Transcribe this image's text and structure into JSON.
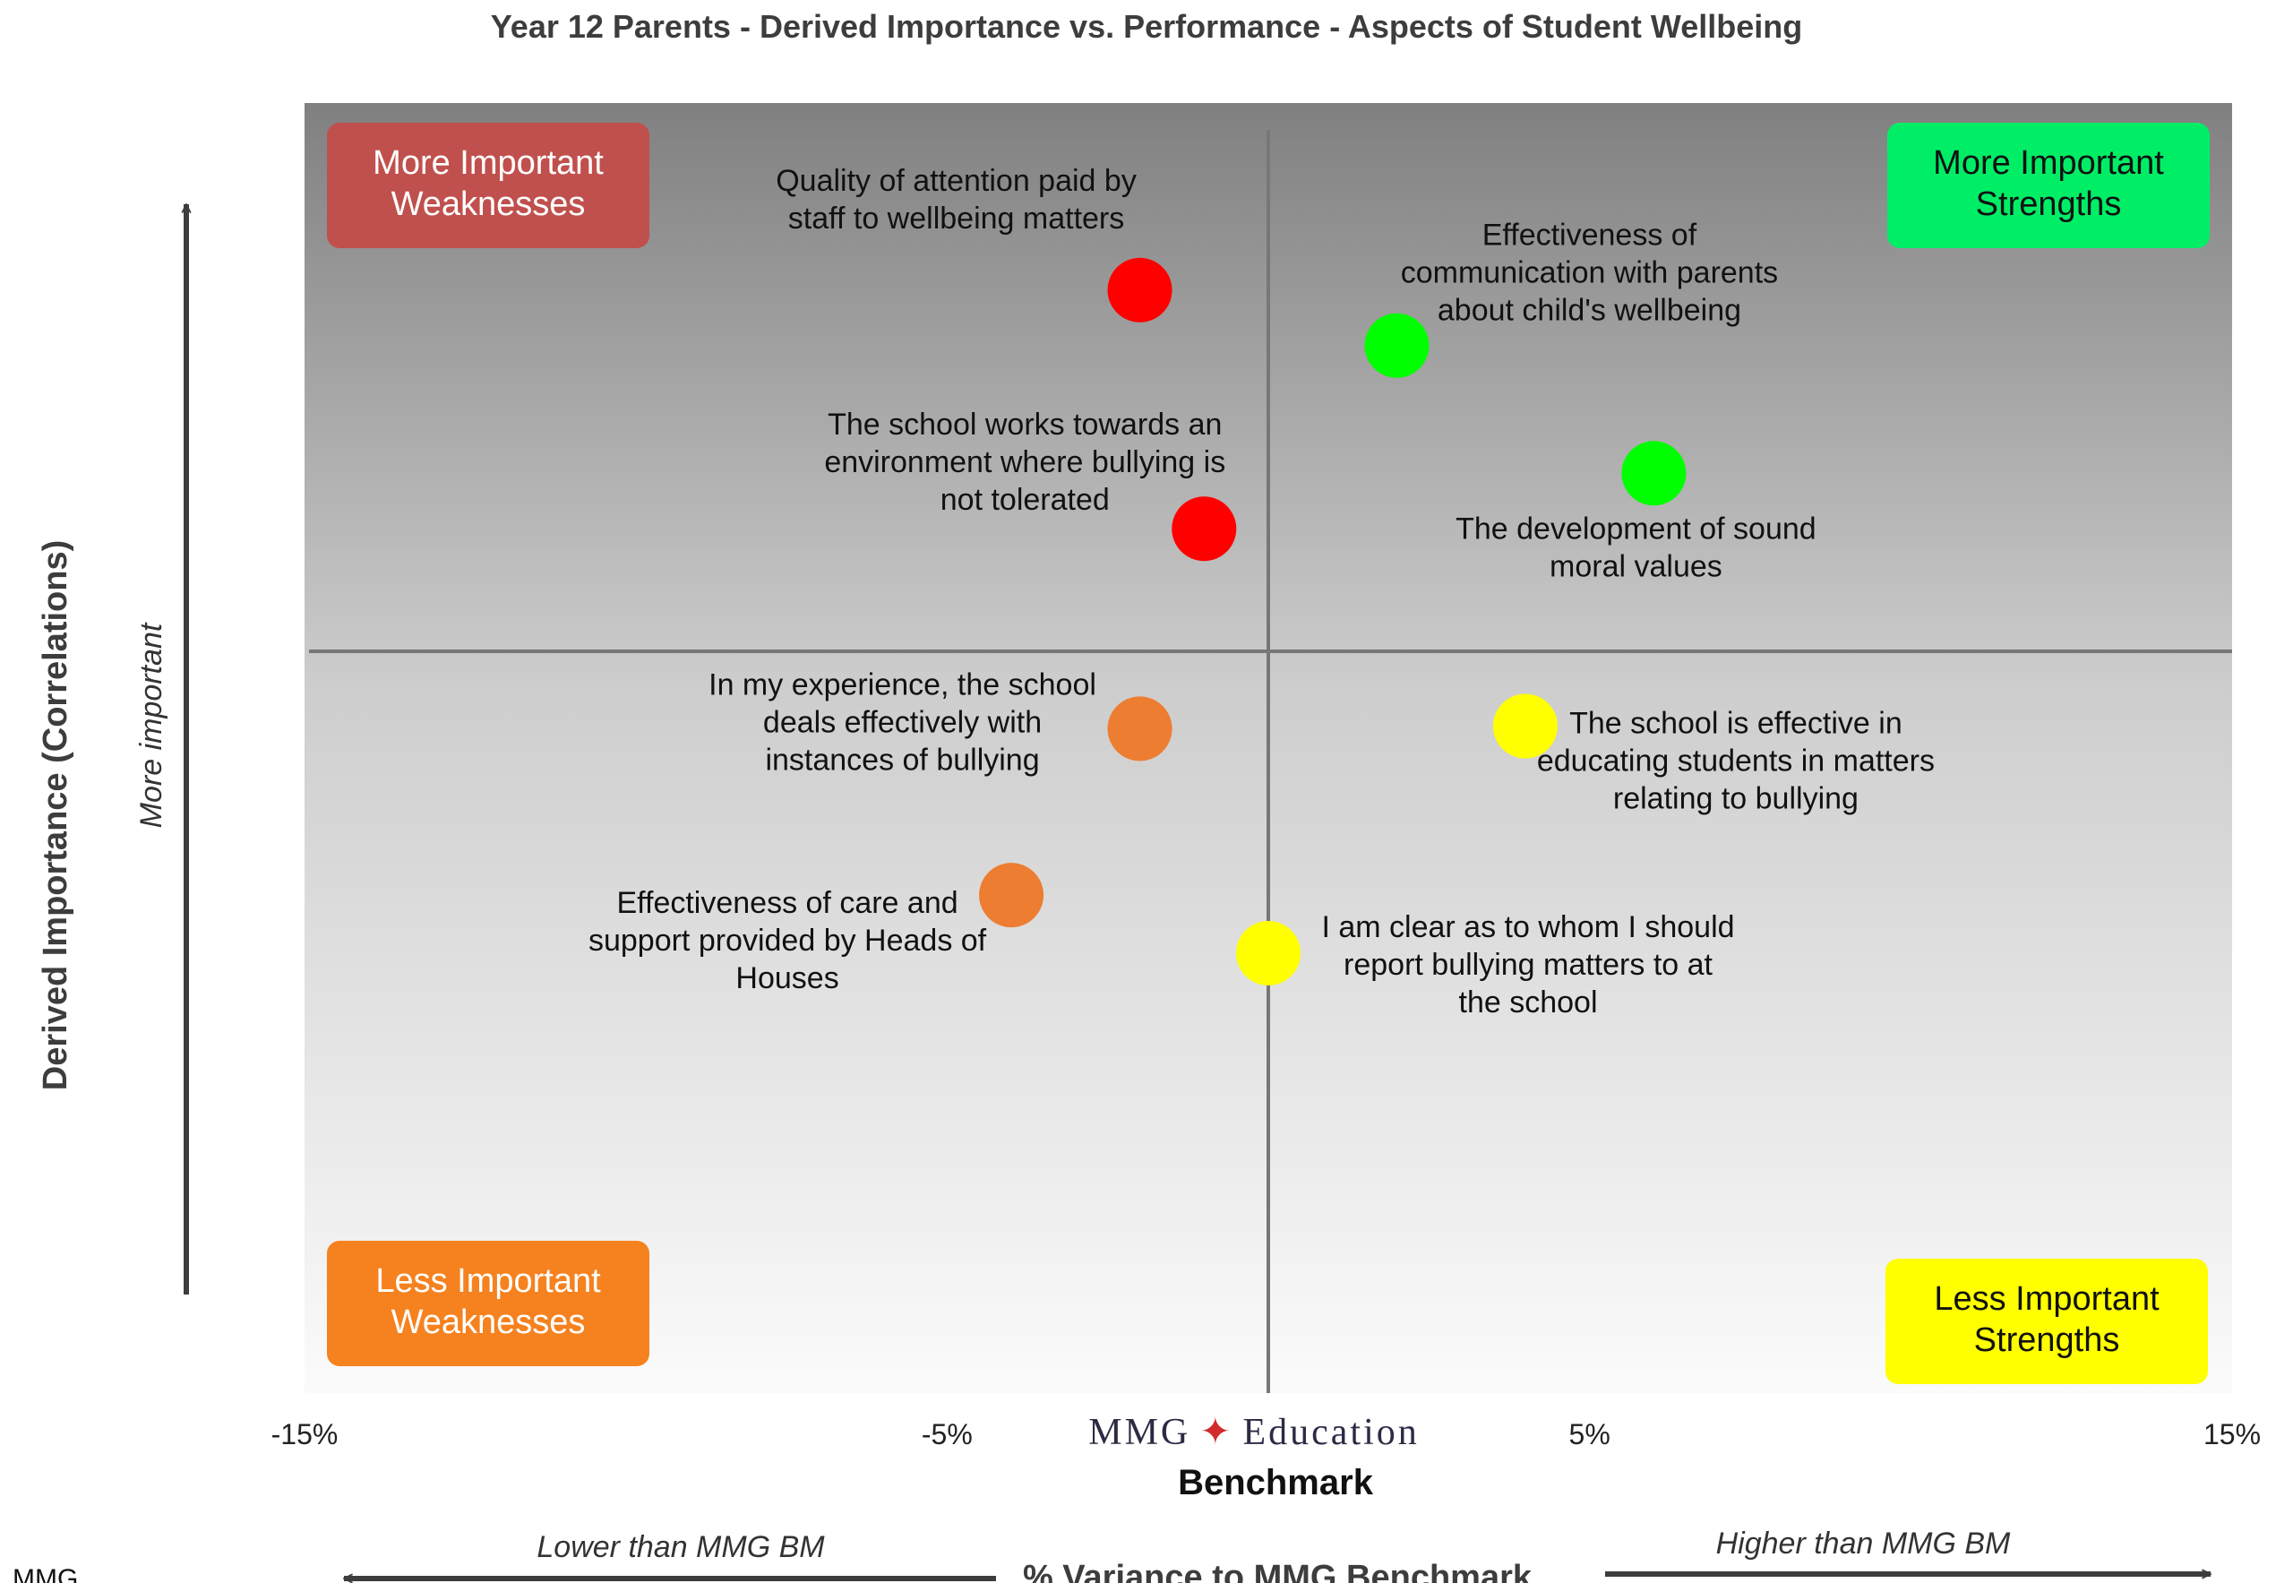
{
  "chart_data": {
    "type": "scatter",
    "title": "Year 12 Parents -  Derived Importance vs. Performance - Aspects of Student Wellbeing",
    "xlabel": "Benchmark",
    "ylabel": "Derived Importance (Correlations)",
    "xlim": [
      -15,
      15
    ],
    "ylim": [
      0,
      100
    ],
    "x_ticks": [
      {
        "value": -15,
        "label": "-15%"
      },
      {
        "value": -5,
        "label": "-5%"
      },
      {
        "value": 5,
        "label": "5%"
      },
      {
        "value": 15,
        "label": "15%"
      }
    ],
    "crosshair": {
      "x": 0,
      "y": 57.5
    },
    "points": [
      {
        "label": "Quality of attention paid by staff to wellbeing matters",
        "lines": [
          "Quality of attention paid by",
          "staff to wellbeing matters"
        ],
        "x": -2.0,
        "y": 85.5,
        "color": "#ff0000",
        "label_side": "above"
      },
      {
        "label": "Effectiveness of communication with parents about child's wellbeing",
        "lines": [
          "Effectiveness of",
          "communication with parents",
          "about child's wellbeing"
        ],
        "x": 2.0,
        "y": 81.2,
        "color": "#00ff00",
        "label_side": "above-right"
      },
      {
        "label": "The development of sound moral values",
        "lines": [
          "The development of sound",
          "moral values"
        ],
        "x": 6.0,
        "y": 71.3,
        "color": "#00ff00",
        "label_side": "below"
      },
      {
        "label": "The school works towards an environment where bullying is not tolerated",
        "lines": [
          "The school works towards an",
          "environment where bullying is",
          "not tolerated"
        ],
        "x": -1.0,
        "y": 67.0,
        "color": "#ff0000",
        "label_side": "above-left"
      },
      {
        "label": "In my experience, the school deals effectively with instances of bullying",
        "lines": [
          "In my experience, the school",
          "deals effectively with",
          "instances of bullying"
        ],
        "x": -2.0,
        "y": 51.5,
        "color": "#ed7d31",
        "label_side": "left"
      },
      {
        "label": "The school is effective in educating students in matters relating to bullying",
        "lines": [
          "The school is effective in",
          "educating students in matters",
          "relating to bullying"
        ],
        "x": 4.0,
        "y": 51.7,
        "color": "#ffff00",
        "label_side": "right"
      },
      {
        "label": "Effectiveness of care and support provided by Heads of Houses",
        "lines": [
          "Effectiveness of care and",
          "support provided by Heads of",
          "Houses"
        ],
        "x": -4.0,
        "y": 38.6,
        "color": "#ed7d31",
        "label_side": "left"
      },
      {
        "label": "I am clear as to whom I should report bullying matters to at the school",
        "lines": [
          "I am clear as to whom I should",
          "report bullying matters to at",
          "the school"
        ],
        "x": 0.0,
        "y": 34.1,
        "color": "#ffff00",
        "label_side": "right"
      }
    ],
    "quadrants": [
      {
        "position": "top-left",
        "lines": [
          "More Important",
          "Weaknesses"
        ],
        "color": "#c0504d",
        "text_color": "#ffffff"
      },
      {
        "position": "top-right",
        "lines": [
          "More Important",
          "Strengths"
        ],
        "color": "#00ee66",
        "text_color": "#111111"
      },
      {
        "position": "bottom-left",
        "lines": [
          "Less Important",
          "Weaknesses"
        ],
        "color": "#f5821f",
        "text_color": "#ffffff"
      },
      {
        "position": "bottom-right",
        "lines": [
          "Less Important",
          "Strengths"
        ],
        "color": "#ffff00",
        "text_color": "#111111"
      }
    ],
    "y_arrow_note": "More important",
    "x_arrow_left_note": "Lower than MMG BM",
    "x_arrow_right_note": "Higher than MMG BM",
    "x_arrow_title": "% Variance to MMG Benchmark",
    "grid": false,
    "legend": "none"
  },
  "logo": {
    "left": "MMG",
    "star": "✦",
    "right": "Education"
  },
  "footer": {
    "source": "MMG"
  }
}
